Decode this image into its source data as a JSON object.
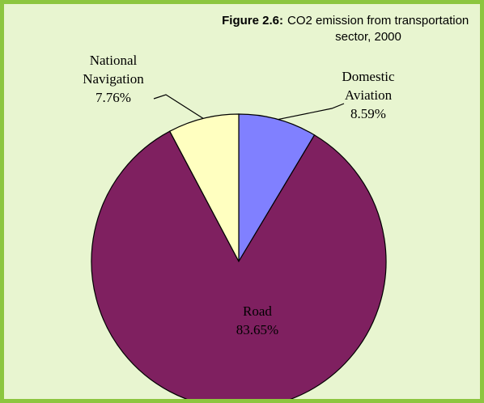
{
  "chart_data": {
    "type": "pie",
    "figure_label": "Figure 2.6:",
    "title": "CO2 emission from transportation sector, 2000",
    "categories": [
      "Domestic Aviation",
      "Road",
      "National Navigation"
    ],
    "values": [
      8.59,
      83.65,
      7.76
    ],
    "value_labels": [
      "8.59%",
      "83.65%",
      "7.76%"
    ],
    "colors": [
      "#8080ff",
      "#7f2060",
      "#ffffc0"
    ]
  }
}
